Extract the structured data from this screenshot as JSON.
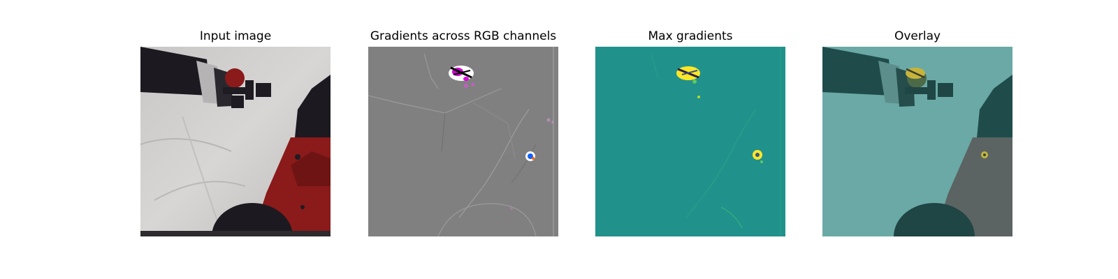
{
  "panels": [
    {
      "title": "Input image"
    },
    {
      "title": "Gradients across RGB channels"
    },
    {
      "title": "Max gradients"
    },
    {
      "title": "Overlay"
    }
  ],
  "colors": {
    "background": "#ffffff",
    "gradient_gray": "#808080",
    "viridis_teal": "#21918c",
    "viridis_yellow": "#fde725",
    "robot_red": "#8b1a1a",
    "robot_black": "#1c1a20"
  }
}
